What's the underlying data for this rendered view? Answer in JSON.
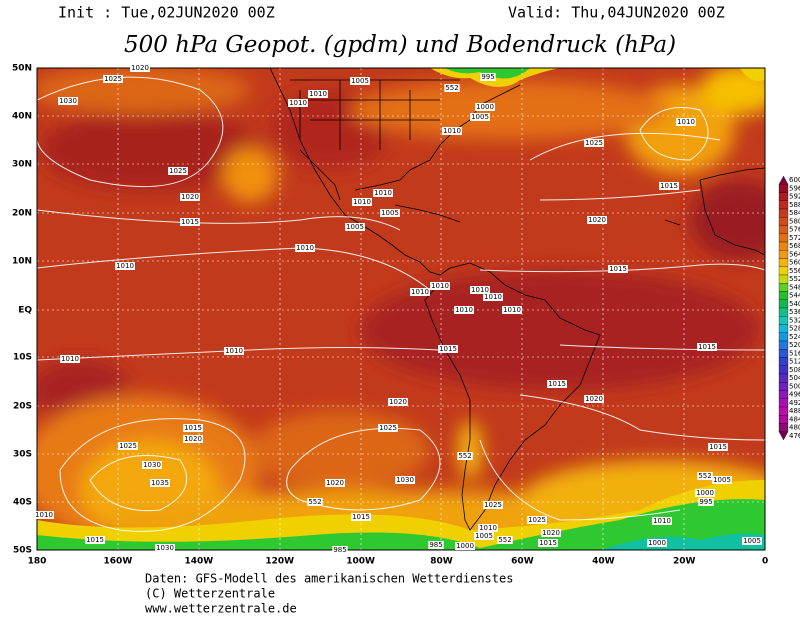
{
  "header": {
    "init": "Init : Tue,02JUN2020 00Z",
    "valid": "Valid: Thu,04JUN2020 00Z",
    "title": "500 hPa Geopot. (gpdm) und Bodendruck (hPa)"
  },
  "map": {
    "lat_labels": [
      "50N",
      "40N",
      "30N",
      "20N",
      "10N",
      "EQ",
      "10S",
      "20S",
      "30S",
      "40S",
      "50S"
    ],
    "lon_labels": [
      "180",
      "160W",
      "140W",
      "120W",
      "100W",
      "80W",
      "60W",
      "40W",
      "20W",
      "0"
    ],
    "isobar_labels": [
      "1025",
      "1020",
      "1030",
      "1025",
      "1020",
      "1015",
      "1010",
      "1010",
      "1005",
      "1010",
      "1010",
      "1010",
      "1005",
      "1000",
      "995",
      "552",
      "1025",
      "1010",
      "1015",
      "1020",
      "1015",
      "1010",
      "1010",
      "1005",
      "1005",
      "1010",
      "1010",
      "1010",
      "1010",
      "1010",
      "1010",
      "1010",
      "1010",
      "1015",
      "1015",
      "1020",
      "1015",
      "1020",
      "1025",
      "1015",
      "1020",
      "1025",
      "1030",
      "1035",
      "1030",
      "1020",
      "552",
      "1015",
      "552",
      "1005",
      "1000",
      "995",
      "1025",
      "1015",
      "1025",
      "1020",
      "1010",
      "1010",
      "1005",
      "1000",
      "985",
      "552",
      "552",
      "1015",
      "1000",
      "1005",
      "1030",
      "1015",
      "1010",
      "985"
    ]
  },
  "colorbar": {
    "labels": [
      "600",
      "596",
      "592",
      "588",
      "584",
      "580",
      "576",
      "572",
      "568",
      "564",
      "560",
      "556",
      "552",
      "548",
      "544",
      "540",
      "536",
      "532",
      "528",
      "524",
      "520",
      "516",
      "512",
      "508",
      "504",
      "500",
      "496",
      "492",
      "488",
      "484",
      "480",
      "476"
    ],
    "colors": [
      "#7a0040",
      "#9a0a2a",
      "#b01c22",
      "#c02a1e",
      "#c83a1c",
      "#d24a18",
      "#dc5c16",
      "#e46e14",
      "#ec8410",
      "#f29a0c",
      "#f6b408",
      "#f0d000",
      "#c8d800",
      "#60d020",
      "#20c030",
      "#10b850",
      "#10c088",
      "#10c8b8",
      "#10b8d8",
      "#1898e0",
      "#2078e0",
      "#2858d8",
      "#3040d0",
      "#4030c8",
      "#5828c0",
      "#7020c0",
      "#9018c0",
      "#a810b8",
      "#c008b0",
      "#b00898",
      "#900878",
      "#700050"
    ]
  },
  "footer": {
    "line1": "Daten: GFS-Modell des amerikanischen Wetterdienstes",
    "line2": "(C) Wetterzentrale",
    "line3": "www.wetterzentrale.de"
  }
}
